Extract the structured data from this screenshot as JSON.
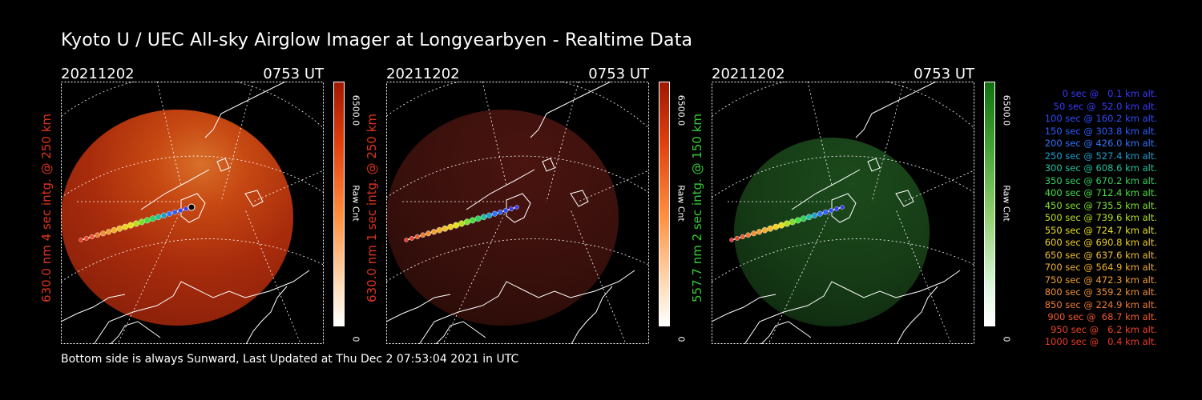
{
  "title": "Kyoto U / UEC All-sky Airglow Imager at Longyearbyen - Realtime Data",
  "footer": "Bottom side is always Sunward, Last Updated at Thu Dec  2 07:53:04 2021 in UTC",
  "colors": {
    "red": "#e0331a",
    "green": "#33cc33",
    "white": "#ffffff"
  },
  "panels": [
    {
      "date": "20211202",
      "time": "0753 UT",
      "label": "630.0 nm 4 sec intg. @ 250 km",
      "label_color": "#e0331a",
      "cbar_max": "6500.0",
      "cbar_unit": "Raw Cnt",
      "cbar_min": "0",
      "scheme": "red",
      "intensity": "bright"
    },
    {
      "date": "20211202",
      "time": "0753 UT",
      "label": "630.0 nm 1 sec intg. @ 250 km",
      "label_color": "#e0331a",
      "cbar_max": "6500.0",
      "cbar_unit": "Raw Cnt",
      "cbar_min": "0",
      "scheme": "red",
      "intensity": "dim"
    },
    {
      "date": "20211202",
      "time": "0753 UT",
      "label": "557.7 nm 2 sec intg. @ 150 km",
      "label_color": "#33cc33",
      "cbar_max": "6500.0",
      "cbar_unit": "Raw Cnt",
      "cbar_min": "0",
      "scheme": "green",
      "intensity": "dim"
    }
  ],
  "legend": [
    {
      "text": "0 sec @   0.1 km alt.",
      "color": "#3a3aff"
    },
    {
      "text": "50 sec @  52.0 km alt.",
      "color": "#3a3aff"
    },
    {
      "text": "100 sec @ 160.2 km alt.",
      "color": "#2d4dff"
    },
    {
      "text": "150 sec @ 303.8 km alt.",
      "color": "#2d5eff"
    },
    {
      "text": "200 sec @ 426.0 km alt.",
      "color": "#2f74ff"
    },
    {
      "text": "250 sec @ 527.4 km alt.",
      "color": "#1aa0d0"
    },
    {
      "text": "300 sec @ 608.6 km alt.",
      "color": "#22c0a0"
    },
    {
      "text": "350 sec @ 670.2 km alt.",
      "color": "#33d060"
    },
    {
      "text": "400 sec @ 712.4 km alt.",
      "color": "#44e040"
    },
    {
      "text": "450 sec @ 735.5 km alt.",
      "color": "#7fe030"
    },
    {
      "text": "500 sec @ 739.6 km alt.",
      "color": "#b8e020"
    },
    {
      "text": "550 sec @ 724.7 km alt.",
      "color": "#e6e020"
    },
    {
      "text": "600 sec @ 690.8 km alt.",
      "color": "#f0d020"
    },
    {
      "text": "650 sec @ 637.6 km alt.",
      "color": "#f0c030"
    },
    {
      "text": "700 sec @ 564.9 km alt.",
      "color": "#f0b030"
    },
    {
      "text": "750 sec @ 472.3 km alt.",
      "color": "#f0a030"
    },
    {
      "text": "800 sec @ 359.2 km alt.",
      "color": "#f09030"
    },
    {
      "text": "850 sec @ 224.9 km alt.",
      "color": "#f07a30"
    },
    {
      "text": "900 sec @  68.7 km alt.",
      "color": "#f05a30"
    },
    {
      "text": "950 sec @   6.2 km alt.",
      "color": "#f04428"
    },
    {
      "text": "1000 sec @   0.4 km alt.",
      "color": "#f03a28"
    }
  ]
}
